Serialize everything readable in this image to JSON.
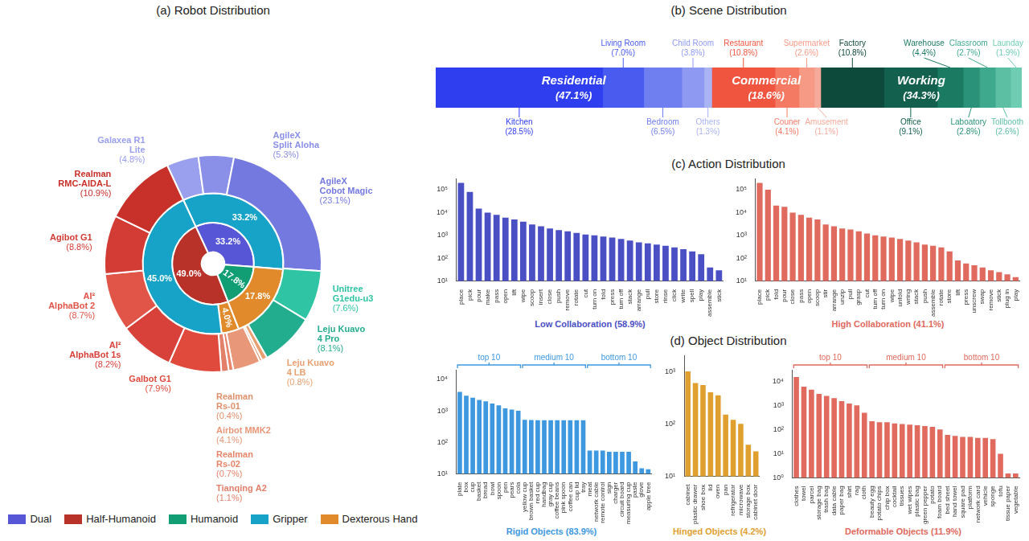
{
  "chart_data": [
    {
      "type": "doughnut",
      "title": "(a) Robot Distribution",
      "legend": "bottom",
      "data_labels": true,
      "legend_items": [
        {
          "name": "Dual",
          "color": "#5656d6"
        },
        {
          "name": "Half-Humanoid",
          "color": "#b8322a"
        },
        {
          "name": "Humanoid",
          "color": "#129e74"
        },
        {
          "name": "Gripper",
          "color": "#17a2c8"
        },
        {
          "name": "Dexterous Hand",
          "color": "#e08a2b"
        }
      ],
      "series": [
        {
          "categories": [
            "Galaxea R1 Lite",
            "AgileX Split Aloha",
            "AgileX Cobot Magic",
            "Unitree G1edu-u3",
            "Leju Kuavo 4 Pro",
            "Leju Kuavo 4 LB",
            "Realman Rs-01",
            "Airbot MMK2",
            "Realman Rs-02",
            "Tianqing A2",
            "Galbot G1",
            "AI² AlphaBot 1s",
            "AI² AlphaBot 2",
            "Agibot G1",
            "Realman RMC-AIDA-L"
          ],
          "values": [
            4.8,
            5.3,
            23.1,
            7.6,
            8.1,
            0.8,
            0.4,
            4.1,
            0.7,
            1.1,
            7.9,
            8.2,
            8.7,
            8.8,
            10.9
          ],
          "value_labels": [
            "(4.8%)",
            "(5.3%)",
            "(23.1%)",
            "(7.6%)",
            "(8.1%)",
            "(0.8%)",
            "(0.4%)",
            "(4.1%)",
            "(0.7%)",
            "(1.1%)",
            "(7.9%)",
            "(8.2%)",
            "(8.7%)",
            "(8.8%)",
            "(10.9%)"
          ],
          "colors": [
            "#9aa0ee",
            "#8a8fe8",
            "#7479e0",
            "#2ec4a4",
            "#23ad8f",
            "#e8a070",
            "#e0906a",
            "#e89878",
            "#e8856a",
            "#e2806a",
            "#e04a3c",
            "#d8403a",
            "#e05548",
            "#d23c34",
            "#c8302a"
          ]
        },
        {
          "categories": [
            "Gripper",
            "Dexterous Hand",
            "Dexterous Hand",
            "Gripper"
          ],
          "values": [
            33.2,
            17.8,
            4.0,
            45.0
          ],
          "value_labels": [
            "33.2%",
            "17.8%",
            "4.0%",
            "45.0%"
          ]
        },
        {
          "categories": [
            "Dual",
            "Humanoid",
            "Half-Humanoid"
          ],
          "values": [
            33.2,
            17.8,
            49.0
          ],
          "value_labels": [
            "33.2%",
            "17.8%",
            "49.0%"
          ]
        }
      ]
    },
    {
      "type": "bar",
      "orientation": "horizontal",
      "stacked": true,
      "title": "(b) Scene Distribution",
      "xlim": [
        0,
        100
      ],
      "tick_labels": false,
      "grid": false,
      "data_labels": true,
      "groups": [
        {
          "name": "Residential",
          "value": 47.1,
          "value_label": "(47.1%)",
          "categories": [
            "Kitchen",
            "Living Room",
            "Bedroom",
            "Child Room",
            "Others"
          ],
          "values": [
            28.5,
            7.0,
            6.5,
            3.8,
            1.3
          ],
          "value_labels": [
            "(28.5%)",
            "(7.0%)",
            "(6.5%)",
            "(3.8%)",
            "(1.3%)"
          ],
          "colors": [
            "#2f3ff0",
            "#4a5cf0",
            "#6f7ff0",
            "#8e9af2",
            "#aab3f4"
          ]
        },
        {
          "name": "Commercial",
          "value": 18.6,
          "value_label": "(18.6%)",
          "categories": [
            "Restaurant",
            "Couner",
            "Supermarket",
            "Amusement"
          ],
          "values": [
            10.8,
            4.1,
            2.6,
            1.1
          ],
          "value_labels": [
            "(10.8%)",
            "(4.1%)",
            "(2.6%)",
            "(1.1%)"
          ],
          "colors": [
            "#f0553f",
            "#f47a64",
            "#f69a86",
            "#f5aa9a"
          ]
        },
        {
          "name": "Working",
          "value": 34.3,
          "value_label": "(34.3%)",
          "categories": [
            "Factory",
            "Office",
            "Warehouse",
            "Laboatory",
            "Classroom",
            "Tollbooth",
            "Launday"
          ],
          "values": [
            10.8,
            9.1,
            4.4,
            2.8,
            2.7,
            2.6,
            1.9
          ],
          "value_labels": [
            "(10.8%)",
            "(9.1%)",
            "(4.4%)",
            "(2.8%)",
            "(2.7%)",
            "(2.6%)",
            "(1.9%)"
          ],
          "colors": [
            "#0e4a3c",
            "#13604e",
            "#1a7a62",
            "#2a9278",
            "#3fa98e",
            "#5cbfa4",
            "#6fcdb3"
          ]
        }
      ]
    },
    {
      "title": "(c) Action Distribution",
      "charts": [
        {
          "type": "bar",
          "log": "y",
          "grid": false,
          "xlabel": "Low Collaboration (58.9%)",
          "color": "#4b4fc4",
          "ylim": [
            10,
            300000
          ],
          "yticks": [
            {
              "value": 10,
              "label": "10¹"
            },
            {
              "value": 100,
              "label": "10²"
            },
            {
              "value": 1000,
              "label": "10³"
            },
            {
              "value": 10000,
              "label": "10⁴"
            },
            {
              "value": 100000,
              "label": "10⁵"
            }
          ],
          "categories": [
            "place",
            "pick",
            "pour",
            "make",
            "pass",
            "open",
            "lift",
            "wipe",
            "scoop",
            "insert",
            "close",
            "push",
            "remove",
            "rotate",
            "cut",
            "turn on",
            "fold",
            "press",
            "turn off",
            "stack",
            "arrange",
            "pull",
            "store",
            "rinse",
            "click",
            "write",
            "spell",
            "play",
            "assemble",
            "stick"
          ],
          "values": [
            200000,
            80000,
            15000,
            10000,
            8000,
            6000,
            5000,
            4000,
            3000,
            2500,
            2000,
            1700,
            1500,
            1300,
            1100,
            1000,
            900,
            800,
            700,
            600,
            500,
            450,
            400,
            350,
            300,
            250,
            200,
            150,
            40,
            30
          ]
        },
        {
          "type": "bar",
          "log": "y",
          "grid": false,
          "xlabel": "High Collaboration (41.1%)",
          "color": "#e06a5e",
          "ylim": [
            10,
            300000
          ],
          "yticks": [
            {
              "value": 10,
              "label": "10¹"
            },
            {
              "value": 100,
              "label": "10²"
            },
            {
              "value": 1000,
              "label": "10³"
            },
            {
              "value": 10000,
              "label": "10⁴"
            },
            {
              "value": 100000,
              "label": "10⁵"
            }
          ],
          "categories": [
            "place",
            "pick",
            "fold",
            "pour",
            "close",
            "pass",
            "open",
            "scoop",
            "stir",
            "arrange",
            "unzip",
            "pull",
            "grasp",
            "cut",
            "turn off",
            "turn on",
            "wipe",
            "unfold",
            "wring",
            "stack",
            "push",
            "assemble",
            "rotate",
            "store",
            "lift",
            "press",
            "unscrew",
            "swap",
            "remove",
            "stick",
            "plug in",
            "play"
          ],
          "values": [
            200000,
            100000,
            20000,
            18000,
            10000,
            8000,
            6000,
            5000,
            3000,
            2500,
            2000,
            1800,
            1500,
            1200,
            1000,
            900,
            800,
            700,
            600,
            500,
            400,
            350,
            300,
            200,
            80,
            60,
            50,
            40,
            30,
            25,
            20,
            15
          ]
        }
      ]
    },
    {
      "title": "(d) Object Distribution",
      "charts": [
        {
          "type": "bar",
          "log": "y",
          "grid": false,
          "xlabel": "Rigid Objects (83.9%)",
          "color": "#3d98e0",
          "ylim": [
            10,
            20000
          ],
          "yticks": [
            {
              "value": 10,
              "label": "10¹"
            },
            {
              "value": 100,
              "label": "10²"
            },
            {
              "value": 1000,
              "label": "10³"
            },
            {
              "value": 10000,
              "label": "10⁴"
            }
          ],
          "categories": [
            "plate",
            "box",
            "cup",
            "basket",
            "bread",
            "bowl",
            "spoon",
            "pen",
            "pears",
            "cola",
            "yellow cup",
            "brown basket",
            "red cup",
            "handbag",
            "gray cup",
            "coffee beans",
            "pink spoon",
            "coffee can",
            "cup lid",
            "tray",
            "meat",
            "network cable",
            "remote control",
            "sign",
            "charger",
            "circuit board",
            "measuring cup",
            "paste",
            "glove",
            "apple tree"
          ],
          "values": [
            4000,
            3000,
            2600,
            2200,
            2000,
            1700,
            1500,
            1200,
            1100,
            1000,
            520,
            510,
            500,
            500,
            500,
            500,
            500,
            500,
            500,
            500,
            55,
            55,
            55,
            50,
            50,
            50,
            50,
            25,
            15,
            14
          ],
          "annotations": [
            {
              "text": "top 10",
              "from": "plate",
              "to": "cola"
            },
            {
              "text": "medium 10",
              "from": "yellow cup",
              "to": "tray"
            },
            {
              "text": "bottom 10",
              "from": "meat",
              "to": "apple tree"
            }
          ]
        },
        {
          "type": "bar",
          "log": "y",
          "grid": false,
          "xlabel": "Hinged Objects (4.2%)",
          "color": "#e0a030",
          "ylim": [
            10,
            2000
          ],
          "yticks": [
            {
              "value": 10,
              "label": "10¹"
            },
            {
              "value": 100,
              "label": "10²"
            },
            {
              "value": 1000,
              "label": "10³"
            }
          ],
          "categories": [
            "cabinet",
            "plastic drawer",
            "shoe box",
            "lid",
            "oven",
            "pan",
            "refrigerator",
            "microwave",
            "storage box",
            "cabinet door"
          ],
          "values": [
            1000,
            600,
            550,
            400,
            350,
            150,
            120,
            100,
            40,
            30
          ]
        },
        {
          "type": "bar",
          "log": "y",
          "grid": false,
          "xlabel": "Deformable Objects (11.9%)",
          "color": "#e06a5e",
          "ylim": [
            1,
            30000
          ],
          "yticks": [
            {
              "value": 1,
              "label": "10⁰"
            },
            {
              "value": 10,
              "label": "10¹"
            },
            {
              "value": 100,
              "label": "10²"
            },
            {
              "value": 1000,
              "label": "10³"
            },
            {
              "value": 10000,
              "label": "10⁴"
            }
          ],
          "categories": [
            "clothes",
            "towel",
            "parcel",
            "storage bag",
            "trash bag",
            "data cable",
            "paper bag",
            "shirt",
            "rag",
            "cloth",
            "beauty egg",
            "potato chips",
            "chip box",
            "cocktail",
            "tissues",
            "wet wipes",
            "plastic bag",
            "green pepper",
            "potato",
            "foam board",
            "bed sheet",
            "hand towel",
            "square pad",
            "platform",
            "network card",
            "vehicle",
            "sponge",
            "tofu",
            "tissue paper",
            "vegetable"
          ],
          "values": [
            15000,
            6000,
            4500,
            3000,
            2500,
            2000,
            1500,
            1200,
            1000,
            500,
            220,
            200,
            200,
            180,
            170,
            160,
            150,
            140,
            130,
            100,
            60,
            55,
            50,
            50,
            45,
            45,
            40,
            10,
            1.5,
            1.5
          ],
          "annotations": [
            {
              "text": "top 10",
              "from": "clothes",
              "to": "cloth"
            },
            {
              "text": "medium 10",
              "from": "beauty egg",
              "to": "foam board"
            },
            {
              "text": "bottom 10",
              "from": "bed sheet",
              "to": "vegetable"
            }
          ]
        }
      ]
    }
  ]
}
